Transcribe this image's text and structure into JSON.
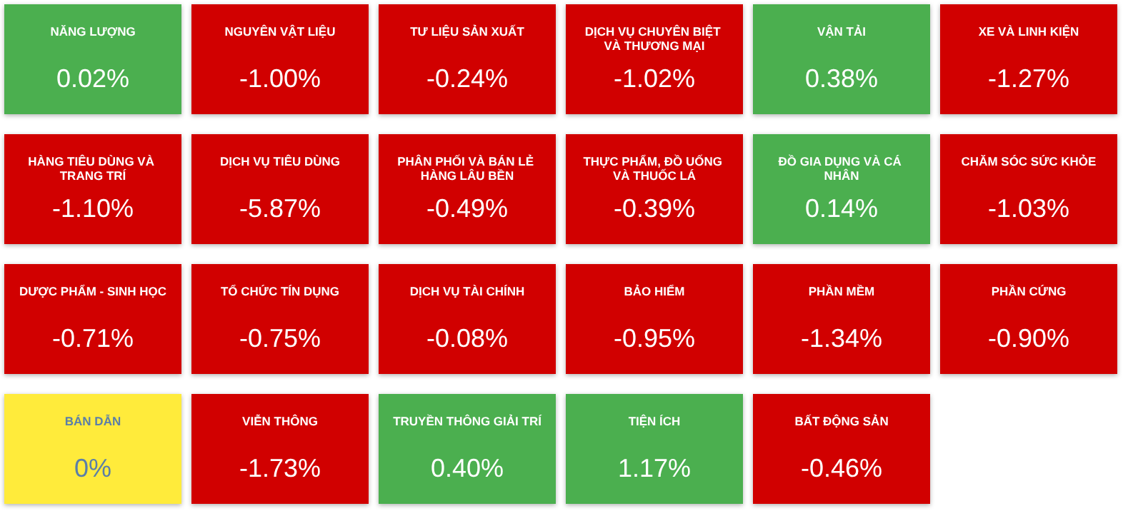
{
  "chart_data": {
    "type": "other",
    "categories": [
      "NĂNG LƯỢNG",
      "NGUYÊN VẬT LIỆU",
      "TƯ LIỆU SẢN XUẤT",
      "DỊCH VỤ CHUYÊN BIỆT VÀ THƯƠNG MẠI",
      "VẬN TẢI",
      "XE VÀ LINH KIỆN",
      "HÀNG TIÊU DÙNG VÀ TRANG TRÍ",
      "DỊCH VỤ TIÊU DÙNG",
      "PHÂN PHỐI VÀ BÁN LẺ HÀNG LÂU BỀN",
      "THỰC PHẨM, ĐỒ UỐNG VÀ THUỐC LÁ",
      "ĐỒ GIA DỤNG VÀ CÁ NHÂN",
      "CHĂM SÓC SỨC KHỎE",
      "DƯỢC PHẨM - SINH HỌC",
      "TỔ CHỨC TÍN DỤNG",
      "DỊCH VỤ TÀI CHÍNH",
      "BẢO HIỂM",
      "PHẦN MỀM",
      "PHẦN CỨNG",
      "BÁN DẪN",
      "VIỄN THÔNG",
      "TRUYỀN THÔNG GIẢI TRÍ",
      "TIỆN ÍCH",
      "BẤT ĐỘNG SẢN"
    ],
    "values": [
      0.02,
      -1.0,
      -0.24,
      -1.02,
      0.38,
      -1.27,
      -1.1,
      -5.87,
      -0.49,
      -0.39,
      0.14,
      -1.03,
      -0.71,
      -0.75,
      -0.08,
      -0.95,
      -1.34,
      -0.9,
      0,
      -1.73,
      0.4,
      1.17,
      -0.46
    ],
    "value_labels": [
      "0.02%",
      "-1.00%",
      "-0.24%",
      "-1.02%",
      "0.38%",
      "-1.27%",
      "-1.10%",
      "-5.87%",
      "-0.49%",
      "-0.39%",
      "0.14%",
      "-1.03%",
      "-0.71%",
      "-0.75%",
      "-0.08%",
      "-0.95%",
      "-1.34%",
      "-0.90%",
      "0%",
      "-1.73%",
      "0.40%",
      "1.17%",
      "-0.46%"
    ],
    "colors": [
      "#4caf50",
      "#d10000",
      "#d10000",
      "#d10000",
      "#4caf50",
      "#d10000",
      "#d10000",
      "#d10000",
      "#d10000",
      "#d10000",
      "#4caf50",
      "#d10000",
      "#d10000",
      "#d10000",
      "#d10000",
      "#d10000",
      "#d10000",
      "#d10000",
      "#ffeb3b",
      "#d10000",
      "#4caf50",
      "#4caf50",
      "#d10000"
    ]
  }
}
